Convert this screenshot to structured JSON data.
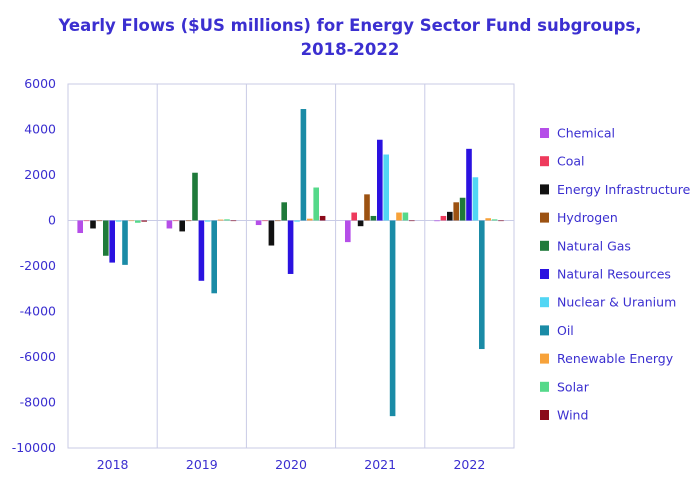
{
  "chart_data": {
    "type": "bar",
    "title_line1": "Yearly Flows ($US millions) for Energy Sector Fund subgroups,",
    "title_line2": "2018-2022",
    "xlabel": "",
    "ylabel": "",
    "ylim": [
      -10000,
      6000
    ],
    "yticks": [
      6000,
      4000,
      2000,
      0,
      -2000,
      -4000,
      -6000,
      -8000,
      -10000
    ],
    "grid": "vertical",
    "legend_position": "right",
    "categories": [
      "2018",
      "2019",
      "2020",
      "2021",
      "2022"
    ],
    "series": [
      {
        "name": "Chemical",
        "color": "#b54ee8",
        "values": [
          -550,
          -350,
          -200,
          -950,
          -30
        ]
      },
      {
        "name": "Coal",
        "color": "#ee3a5c",
        "values": [
          -20,
          -20,
          -20,
          350,
          200
        ]
      },
      {
        "name": "Energy Infrastructure",
        "color": "#111111",
        "values": [
          -350,
          -480,
          -1100,
          -250,
          380
        ]
      },
      {
        "name": "Hydrogen",
        "color": "#9c5212",
        "values": [
          -20,
          -20,
          -20,
          1150,
          800
        ]
      },
      {
        "name": "Natural Gas",
        "color": "#1f7a3a",
        "values": [
          -1550,
          2100,
          800,
          200,
          1000
        ]
      },
      {
        "name": "Natural Resources",
        "color": "#2a12e0",
        "values": [
          -1850,
          -2650,
          -2350,
          3550,
          3150
        ]
      },
      {
        "name": "Nuclear & Uranium",
        "color": "#52d6f4",
        "values": [
          -50,
          -50,
          -50,
          2900,
          1900
        ]
      },
      {
        "name": "Oil",
        "color": "#1a8ba6",
        "values": [
          -1950,
          -3200,
          4900,
          -8600,
          -5650
        ]
      },
      {
        "name": "Renewable Energy",
        "color": "#f7a23a",
        "values": [
          -20,
          40,
          80,
          350,
          100
        ]
      },
      {
        "name": "Solar",
        "color": "#55d98a",
        "values": [
          -100,
          50,
          1450,
          350,
          50
        ]
      },
      {
        "name": "Wind",
        "color": "#8b0a1a",
        "values": [
          -50,
          -20,
          200,
          -20,
          -20
        ]
      }
    ]
  }
}
